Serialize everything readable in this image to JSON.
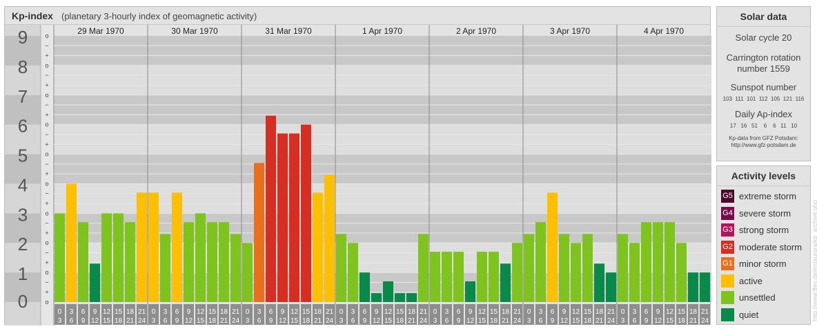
{
  "header": {
    "title": "Kp-index",
    "subtitle": "(planetary 3-hourly index of geomagnetic activity)"
  },
  "y_labels": [
    "0",
    "1",
    "2",
    "3",
    "4",
    "5",
    "6",
    "7",
    "8",
    "9"
  ],
  "sub_marks": [
    "o",
    "+",
    "−"
  ],
  "solar": {
    "title": "Solar data",
    "cycle": "Solar cycle 20",
    "carrington_1": "Carrington rotation",
    "carrington_2": "number 1559",
    "sunspot_title": "Sunspot number",
    "sunspot_values": "103  111  101  112  105  121  116",
    "ap_title": "Daily Ap-index",
    "ap_values": "17   16   51    6    6   11   10",
    "source_1": "Kp-data from GFZ Potsdam:",
    "source_2": "http://www.gfz-potsdam.de"
  },
  "levels": {
    "title": "Activity levels",
    "items": [
      {
        "code": "G5",
        "label": "extreme storm",
        "color": "#4a0a2a"
      },
      {
        "code": "G4",
        "label": "severe storm",
        "color": "#7a0a4a"
      },
      {
        "code": "G3",
        "label": "strong storm",
        "color": "#b0145a"
      },
      {
        "code": "G2",
        "label": "moderate storm",
        "color": "#d62e22"
      },
      {
        "code": "G1",
        "label": "minor storm",
        "color": "#e8701c"
      },
      {
        "code": "",
        "label": "active",
        "color": "#fcc000"
      },
      {
        "code": "",
        "label": "unsettled",
        "color": "#7ec31e"
      },
      {
        "code": "",
        "label": "quiet",
        "color": "#0a8a4a"
      }
    ]
  },
  "credit": "http://www.ffeu.de/en/aurora/kp_archive.php",
  "chart_data": {
    "type": "bar",
    "title": "Kp-index",
    "subtitle": "(planetary 3-hourly index of geomagnetic activity)",
    "ylim": [
      0,
      9
    ],
    "days": [
      "29 Mar 1970",
      "30 Mar 1970",
      "31 Mar 1970",
      "1 Apr 1970",
      "2 Apr 1970",
      "3 Apr 1970",
      "4 Apr 1970"
    ],
    "interval_labels": [
      [
        "0",
        "3"
      ],
      [
        "3",
        "6"
      ],
      [
        "6",
        "9"
      ],
      [
        "9",
        "12"
      ],
      [
        "12",
        "15"
      ],
      [
        "15",
        "18"
      ],
      [
        "18",
        "21"
      ],
      [
        "21",
        "24"
      ]
    ],
    "values": [
      [
        3.0,
        4.0,
        2.7,
        1.3,
        3.0,
        3.0,
        2.7,
        3.7
      ],
      [
        3.7,
        2.3,
        3.7,
        2.7,
        3.0,
        2.7,
        2.7,
        2.3
      ],
      [
        2.0,
        4.7,
        6.3,
        5.7,
        5.7,
        6.0,
        3.7,
        4.3
      ],
      [
        2.3,
        2.0,
        1.0,
        0.3,
        0.7,
        0.3,
        0.3,
        2.3
      ],
      [
        1.7,
        1.7,
        1.7,
        0.7,
        1.7,
        1.7,
        1.3,
        2.0
      ],
      [
        2.3,
        2.7,
        3.7,
        2.3,
        2.0,
        2.3,
        1.3,
        1.0
      ],
      [
        2.3,
        2.0,
        2.7,
        2.7,
        2.7,
        2.0,
        1.0,
        1.0
      ]
    ]
  }
}
